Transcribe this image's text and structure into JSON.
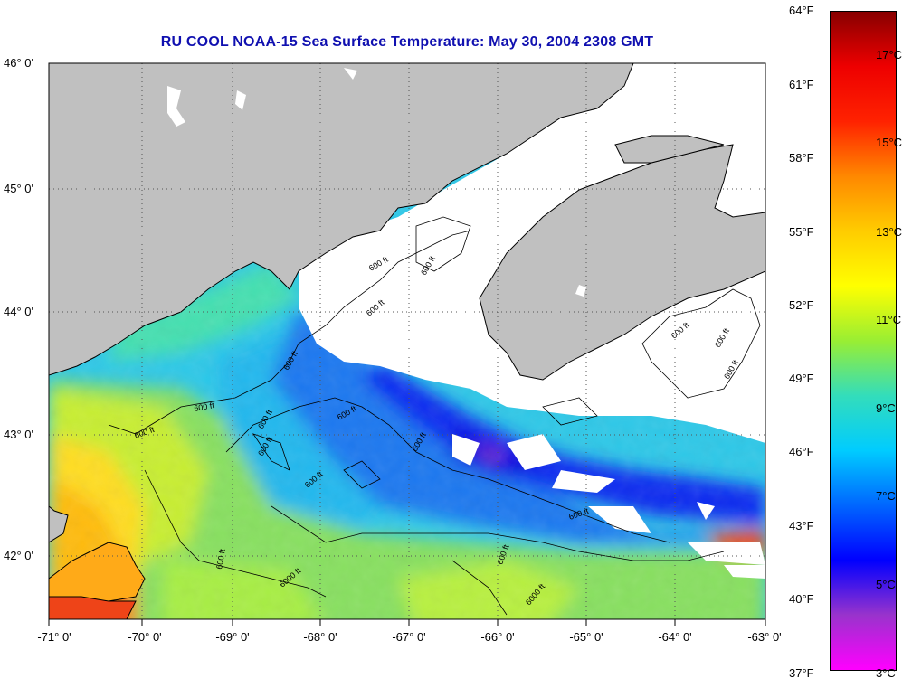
{
  "title": "RU COOL  NOAA-15  Sea Surface Temperature:  May 30, 2004 2308 GMT",
  "map": {
    "lat_labels": [
      "46° 0'",
      "45° 0'",
      "44° 0'",
      "43° 0'",
      "42° 0'"
    ],
    "lon_labels": [
      "-71° 0'",
      "-70° 0'",
      "-69° 0'",
      "-68° 0'",
      "-67° 0'",
      "-66° 0'",
      "-65° 0'",
      "-64° 0'",
      "-63° 0'"
    ],
    "contour_label": "600 ft",
    "contour_label_deep": "6000 ft",
    "colors": {
      "land": "#c0c0c0",
      "cloud": "#ffffff",
      "coast": "#000000",
      "grid": "#444444"
    }
  },
  "colorbar": {
    "fahrenheit": [
      "64°F",
      "61°F",
      "58°F",
      "55°F",
      "52°F",
      "49°F",
      "46°F",
      "43°F",
      "40°F",
      "37°F"
    ],
    "celsius": [
      "17°C",
      "15°C",
      "13°C",
      "11°C",
      "9°C",
      "7°C",
      "5°C",
      "3°C"
    ],
    "colors": [
      "#ff00ff",
      "#9933cc",
      "#0000ff",
      "#0066ff",
      "#00ccff",
      "#33ddbb",
      "#99ee33",
      "#ffff00",
      "#ffcc00",
      "#ff8800",
      "#ff2200",
      "#ee0000",
      "#880000"
    ]
  }
}
